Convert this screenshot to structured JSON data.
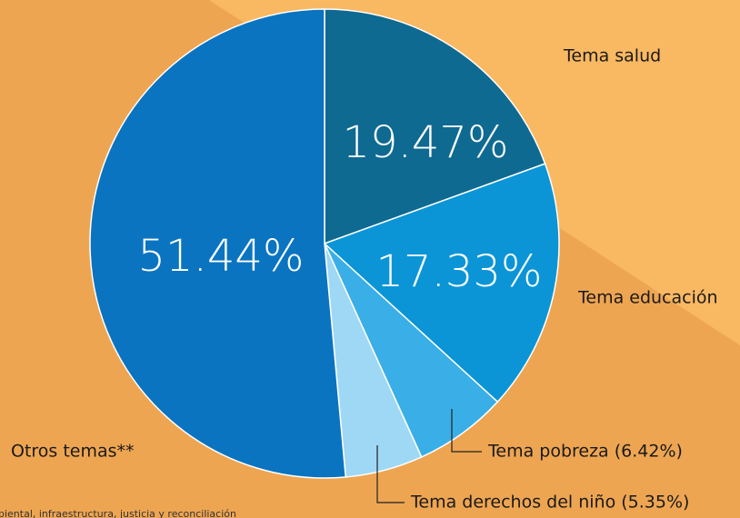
{
  "chart_data": {
    "type": "pie",
    "categories": [
      "Tema salud",
      "Tema educación",
      "Tema pobreza (6.42%)",
      "Tema derechos del niño (5.35%)",
      "Otros temas**"
    ],
    "values": [
      19.47,
      17.33,
      6.42,
      5.35,
      51.44
    ],
    "value_labels": [
      "19.47%",
      "17.33%",
      null,
      null,
      "51.44%"
    ],
    "colors": [
      "#0f6a92",
      "#0b95d6",
      "#3aaee6",
      "#9ed8f5",
      "#0a74c0"
    ],
    "note": "biental, infraestructura, justicia y reconciliación"
  }
}
